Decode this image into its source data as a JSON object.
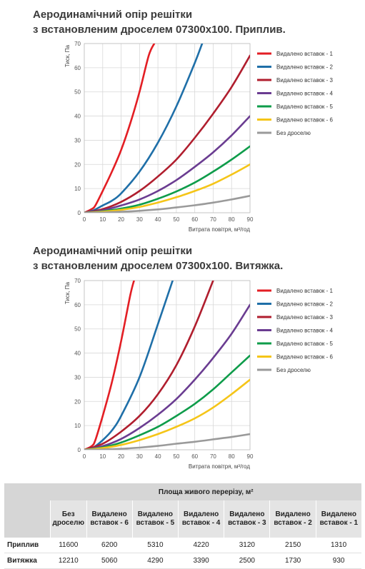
{
  "charts": [
    {
      "title_line1": "Аеродинамічний опір решітки",
      "title_line2": "з встановленим дроселем 07300x100. Приплив."
    },
    {
      "title_line1": "Аеродинамічний опір решітки",
      "title_line2": "з встановленим дроселем 07300x100. Витяжка."
    }
  ],
  "chart_data": [
    {
      "type": "line",
      "title": "Аеродинамічний опір решітки з встановленим дроселем 07300x100. Приплив.",
      "xlabel": "Витрата повітря, м³/год",
      "ylabel": "Тиск, Па",
      "xlim": [
        0,
        90
      ],
      "ylim": [
        0,
        70
      ],
      "xticks": [
        0,
        10,
        20,
        30,
        40,
        50,
        60,
        70,
        80,
        90
      ],
      "yticks": [
        0,
        10,
        20,
        30,
        40,
        50,
        60,
        70
      ],
      "grid": true,
      "legend_position": "right",
      "series": [
        {
          "name": "Видалено вставок - 1",
          "color": "#e31e24",
          "x": [
            0,
            4,
            6,
            10,
            15,
            20,
            25,
            30,
            35,
            38
          ],
          "y": [
            0,
            1.5,
            3,
            9,
            17,
            26,
            37,
            50,
            65,
            70
          ]
        },
        {
          "name": "Видалено вставок - 2",
          "color": "#1f6fa8",
          "x": [
            0,
            5,
            10,
            15,
            20,
            30,
            40,
            50,
            60,
            64
          ],
          "y": [
            0,
            1,
            3,
            5,
            8,
            17,
            29,
            44,
            62,
            70
          ]
        },
        {
          "name": "Видалено вставок - 3",
          "color": "#b01e2e",
          "x": [
            0,
            10,
            20,
            30,
            40,
            50,
            60,
            70,
            80,
            90
          ],
          "y": [
            0,
            1.5,
            4.5,
            9,
            15,
            22,
            31,
            41,
            52,
            65
          ]
        },
        {
          "name": "Видалено вставок - 4",
          "color": "#6a3c91",
          "x": [
            0,
            10,
            20,
            30,
            40,
            50,
            60,
            70,
            80,
            90
          ],
          "y": [
            0,
            1,
            3,
            5.5,
            9,
            13.5,
            19,
            25,
            32,
            40
          ]
        },
        {
          "name": "Видалено вставок - 5",
          "color": "#0e9c4a",
          "x": [
            0,
            10,
            20,
            30,
            40,
            50,
            60,
            70,
            80,
            90
          ],
          "y": [
            0,
            0.6,
            1.7,
            3.3,
            5.8,
            8.8,
            12.5,
            17,
            22,
            27.5
          ]
        },
        {
          "name": "Видалено вставок - 6",
          "color": "#f5c518",
          "x": [
            0,
            10,
            20,
            30,
            40,
            50,
            60,
            70,
            80,
            90
          ],
          "y": [
            0,
            0.4,
            1.2,
            2.4,
            4.2,
            6.4,
            9,
            12,
            15.8,
            20
          ]
        },
        {
          "name": "Без дроселю",
          "color": "#9a9a9a",
          "x": [
            0,
            10,
            20,
            30,
            40,
            50,
            60,
            70,
            80,
            90
          ],
          "y": [
            0,
            0.1,
            0.4,
            0.8,
            1.4,
            2.2,
            3.1,
            4.2,
            5.5,
            7
          ]
        }
      ]
    },
    {
      "type": "line",
      "title": "Аеродинамічний опір решітки з встановленим дроселем 07300x100. Витяжка.",
      "xlabel": "Витрата повітря, м³/год",
      "ylabel": "Тиск, Па",
      "xlim": [
        0,
        90
      ],
      "ylim": [
        0,
        70
      ],
      "xticks": [
        0,
        10,
        20,
        30,
        40,
        50,
        60,
        70,
        80,
        90
      ],
      "yticks": [
        0,
        10,
        20,
        30,
        40,
        50,
        60,
        70
      ],
      "grid": true,
      "legend_position": "right",
      "series": [
        {
          "name": "Видалено вставок - 1",
          "color": "#e31e24",
          "x": [
            0,
            4,
            6,
            10,
            15,
            20,
            25,
            27
          ],
          "y": [
            0,
            1.5,
            4,
            14,
            28,
            45,
            64,
            70
          ]
        },
        {
          "name": "Видалено вставок - 2",
          "color": "#1f6fa8",
          "x": [
            0,
            5,
            10,
            15,
            20,
            30,
            40,
            48
          ],
          "y": [
            0,
            1,
            4,
            8,
            14,
            30,
            52,
            70
          ]
        },
        {
          "name": "Видалено вставок - 3",
          "color": "#b01e2e",
          "x": [
            0,
            10,
            20,
            30,
            40,
            50,
            60,
            70
          ],
          "y": [
            0,
            2.5,
            7.5,
            14,
            23,
            35,
            51,
            70
          ]
        },
        {
          "name": "Видалено вставок - 4",
          "color": "#6a3c91",
          "x": [
            0,
            10,
            20,
            30,
            40,
            50,
            60,
            70,
            80,
            90
          ],
          "y": [
            0,
            1.5,
            4.5,
            9,
            14.5,
            21,
            29,
            38,
            48,
            60
          ]
        },
        {
          "name": "Видалено вставок - 5",
          "color": "#0e9c4a",
          "x": [
            0,
            10,
            20,
            30,
            40,
            50,
            60,
            70,
            80,
            90
          ],
          "y": [
            0,
            1,
            3,
            6,
            9.5,
            14,
            19,
            25,
            32,
            39
          ]
        },
        {
          "name": "Видалено вставок - 6",
          "color": "#f5c518",
          "x": [
            0,
            10,
            20,
            30,
            40,
            50,
            60,
            70,
            80,
            90
          ],
          "y": [
            0,
            0.7,
            2,
            4,
            6.5,
            9.5,
            13,
            17.5,
            23,
            29
          ]
        },
        {
          "name": "Без дроселю",
          "color": "#9a9a9a",
          "x": [
            0,
            10,
            20,
            30,
            40,
            50,
            60,
            70,
            80,
            90
          ],
          "y": [
            0,
            0.1,
            0.4,
            0.9,
            1.6,
            2.5,
            3.3,
            4.3,
            5.3,
            6.5
          ]
        }
      ]
    }
  ],
  "table": {
    "group_header": "Площа живого перерізу, м²",
    "columns": [
      "Без дроселю",
      "Видалено вставок - 6",
      "Видалено вставок - 5",
      "Видалено вставок - 4",
      "Видалено вставок - 3",
      "Видалено вставок - 2",
      "Видалено вставок - 1"
    ],
    "rows": [
      {
        "label": "Приплив",
        "values": [
          "11600",
          "6200",
          "5310",
          "4220",
          "3120",
          "2150",
          "1310"
        ]
      },
      {
        "label": "Витяжка",
        "values": [
          "12210",
          "5060",
          "4290",
          "3390",
          "2500",
          "1730",
          "930"
        ]
      }
    ]
  }
}
